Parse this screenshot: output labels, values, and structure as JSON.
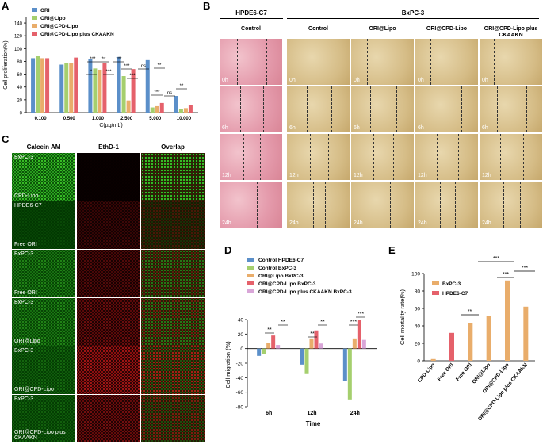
{
  "colors": {
    "blue": "#5b8fc9",
    "green": "#a5cf6e",
    "orange": "#e9ad6b",
    "red": "#e5616b",
    "pink": "#d9a6d8",
    "bg_pink": "#e9a3b4",
    "bg_tan": "#d7c08e"
  },
  "panelA": {
    "letter": "A",
    "legend": [
      "ORI",
      "ORI@Lipo",
      "ORI@CPD-Lipo",
      "ORI@CPD-Lipo plus CKAAKN"
    ],
    "chart_data": {
      "type": "bar",
      "categories": [
        "0.100",
        "0.500",
        "1.000",
        "2.500",
        "5.000",
        "10.000"
      ],
      "series": [
        {
          "name": "ORI",
          "values": [
            85,
            75,
            84,
            87,
            82,
            26
          ]
        },
        {
          "name": "ORI@Lipo",
          "values": [
            88,
            77,
            69,
            57,
            8,
            6
          ]
        },
        {
          "name": "ORI@CPD-Lipo",
          "values": [
            85,
            78,
            67,
            19,
            10,
            7
          ]
        },
        {
          "name": "ORI@CPD-Lipo plus CKAAKN",
          "values": [
            85,
            86,
            77,
            68,
            15,
            12
          ]
        }
      ],
      "xlabel": "C(µg/mL)",
      "ylabel": "Cell proliferation(%)",
      "ylim": [
        0,
        150
      ],
      "yticks": [
        "0",
        "20",
        "40",
        "60",
        "80",
        "100",
        "120",
        "140"
      ]
    },
    "sig": [
      "***",
      "**",
      "*",
      "***",
      "***",
      "***",
      "***",
      "ns",
      "**",
      "***",
      "ns",
      "**"
    ]
  },
  "panelB": {
    "letter": "B",
    "group1": "HPDE6-C7",
    "group2": "BxPC-3",
    "cols": [
      "Control",
      "Control",
      "ORI@Lipo",
      "ORI@CPD-Lipo",
      "ORI@CPD-Lipo plus CKAAKN"
    ],
    "rows": [
      "0h",
      "6h",
      "12h",
      "24h"
    ]
  },
  "panelC": {
    "letter": "C",
    "cols": [
      "Calcein AM",
      "EthD-1",
      "Overlap"
    ],
    "rows": [
      {
        "top": "BxPC-3",
        "bottom": "CPD-Lipo"
      },
      {
        "top": "HPDE6-C7",
        "bottom": "Free ORI"
      },
      {
        "top": "BxPC-3",
        "bottom": "Free ORI"
      },
      {
        "top": "BxPC-3",
        "bottom": "ORI@Lipo"
      },
      {
        "top": "BxPC-3",
        "bottom": "ORI@CPD-Lipo"
      },
      {
        "top": "BxPC-3",
        "bottom": "ORI@CPD-Lipo  plus CKAAKN"
      }
    ]
  },
  "panelD": {
    "letter": "D",
    "legend": [
      "Control HPDE6-C7",
      "Control  BxPC-3",
      "ORI@Lipo  BxPC-3",
      "ORI@CPD-Lipo  BxPC-3",
      "ORI@CPD-Lipo plus CKAAKN  BxPC-3"
    ],
    "chart_data": {
      "type": "bar",
      "categories": [
        "6h",
        "12h",
        "24h"
      ],
      "series": [
        {
          "name": "Control HPDE6-C7",
          "values": [
            -10,
            -22,
            -45
          ]
        },
        {
          "name": "Control BxPC-3",
          "values": [
            -7,
            -35,
            -70
          ]
        },
        {
          "name": "ORI@Lipo BxPC-3",
          "values": [
            8,
            14,
            14
          ]
        },
        {
          "name": "ORI@CPD-Lipo BxPC-3",
          "values": [
            18,
            25,
            40
          ]
        },
        {
          "name": "ORI@CPD-Lipo plus CKAAKN BxPC-3",
          "values": [
            5,
            7,
            12
          ]
        }
      ],
      "xlabel": "Time",
      "ylabel": "Cell migration (%)",
      "ylim": [
        -80,
        40
      ],
      "yticks": [
        "-80",
        "-60",
        "-40",
        "-20",
        "0",
        "20",
        "40"
      ]
    },
    "sig": [
      "**",
      "**",
      "**",
      "**",
      "***",
      "***"
    ]
  },
  "panelE": {
    "letter": "E",
    "legend": [
      "BxPC-3",
      "HPDE6-C7"
    ],
    "chart_data": {
      "type": "bar",
      "categories": [
        "CPD-Lipo",
        "Free ORI",
        "Free ORI",
        "ORI@Lipo",
        "ORI@CPD-Lipo",
        "ORI@CPD-Lipo plus CKAAKN"
      ],
      "values": [
        2,
        32,
        43,
        51,
        92,
        62
      ],
      "cell": [
        "BxPC-3",
        "HPDE6-C7",
        "BxPC-3",
        "BxPC-3",
        "BxPC-3",
        "BxPC-3"
      ],
      "ylabel": "Cell mortality rate(%)",
      "ylim": [
        0,
        100
      ],
      "yticks": [
        "0",
        "20",
        "40",
        "60",
        "80",
        "100"
      ]
    },
    "sig": [
      "**",
      "***",
      "***",
      "***"
    ]
  }
}
